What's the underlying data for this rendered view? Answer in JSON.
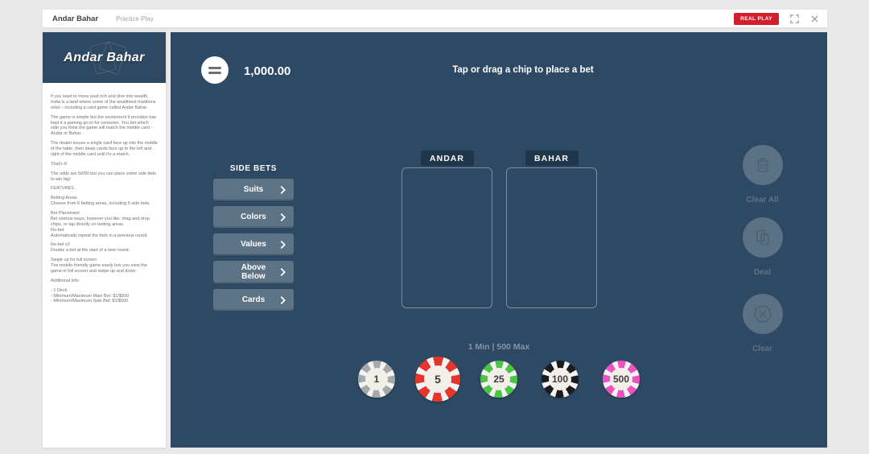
{
  "colors": {
    "page_bg": "#e8e8e8",
    "panel_bg": "#ffffff",
    "table_navy": "#2e4963",
    "side_bet_button": "#5d7386",
    "pile_label_bg": "#20364a",
    "real_play_red": "#d21f2b",
    "limits_text": "#7e96ab"
  },
  "top_bar": {
    "title": "Andar Bahar",
    "mode_label": "Practice Play",
    "real_play_label": "REAL PLAY",
    "icons": [
      "fullscreen-icon",
      "close-icon"
    ]
  },
  "sidebar": {
    "logo_text": "Andar Bahar",
    "paragraphs": [
      "If you want to move past rich and dive into wealth, India is a land where some of the wealthiest traditions exist – including a card game called Andar Bahar.",
      "The game is simple but the excitement it provides has kept it a gaming go-to for centuries. You bet which side you think the game will match the middle card – Andar or Bahar.",
      "The dealer issues a single card face up into the middle of the table, then deals cards face up to the left and right of the middle card until it's a match.",
      "That's it!",
      "The odds are 50/50 but you can place some side bets to win big!",
      "FEATURES",
      "Betting Areas\nChoose from 6 betting areas, including 5 side bets.",
      "Bet Placement\nBet various ways, however you like: drag and drop chips, or tap directly on betting areas.\nRe-bet\nAutomatically repeat the bets in a previous round.",
      "Re-bet x2\nDouble a bet at the start of a new round.",
      "Swipe up for full screen\nThe mobile-friendly game easily lets you view the game in full screen and swipe up and down.",
      "Additional Info",
      "- 1 Deck\n- Minimum/Maximum Main Bet: $1/$500\n- Minimum/Maximum Side Bet: $1/$500"
    ]
  },
  "game": {
    "balance": "1,000.00",
    "instruction": "Tap or drag a chip to place a bet",
    "menu_icon": "menu-icon",
    "side_bets": {
      "title": "SIDE BETS",
      "buttons": [
        "Suits",
        "Colors",
        "Values",
        "Above Below",
        "Cards"
      ]
    },
    "piles": [
      {
        "label": "ANDAR"
      },
      {
        "label": "BAHAR"
      }
    ],
    "limits": "1 Min | 500 Max",
    "chips": [
      {
        "value": "1",
        "color": "#a7a8aa",
        "selected": false
      },
      {
        "value": "5",
        "color": "#e6362b",
        "selected": true
      },
      {
        "value": "25",
        "color": "#4cc544",
        "selected": false
      },
      {
        "value": "100",
        "color": "#1c1c1e",
        "selected": false
      },
      {
        "value": "500",
        "color": "#ee52be",
        "selected": false
      }
    ],
    "actions": [
      {
        "label": "Clear All",
        "icon": "trash-icon"
      },
      {
        "label": "Deal",
        "icon": "cards-icon"
      },
      {
        "label": "Clear",
        "icon": "clear-circle-icon"
      }
    ]
  }
}
